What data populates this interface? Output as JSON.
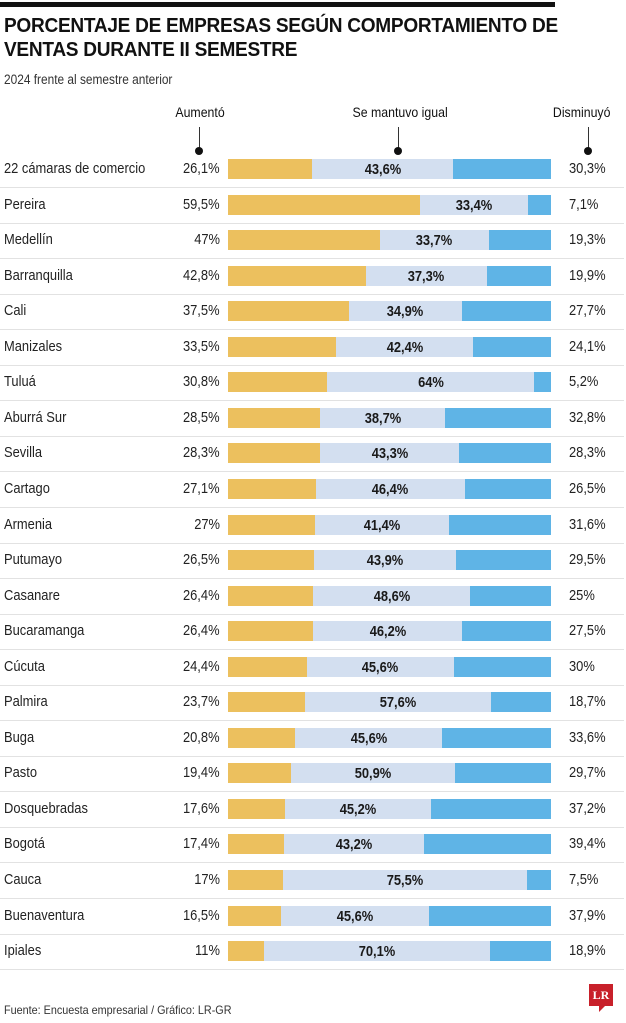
{
  "chart_data": {
    "type": "bar",
    "orientation": "horizontal",
    "stacked": true,
    "normalized_percent": true,
    "title": "PORCENTAJE DE EMPRESAS SEGÚN COMPORTAMIENTO DE VENTAS DURANTE II SEMESTRE",
    "subtitle": "2024 frente al semestre anterior",
    "xlabel": "",
    "ylabel": "",
    "xlim": [
      0,
      100
    ],
    "grid": false,
    "legend_placement": "top",
    "source": "Fuente: Encuesta empresarial / Gráfico: LR-GR",
    "series": [
      {
        "key": "aumento",
        "name": "Aumentó",
        "color": "#ecc05e",
        "values": [
          26.1,
          59.5,
          47,
          42.8,
          37.5,
          33.5,
          30.8,
          28.5,
          28.3,
          27.1,
          27,
          26.5,
          26.4,
          26.4,
          24.4,
          23.7,
          20.8,
          19.4,
          17.6,
          17.4,
          17,
          16.5,
          11
        ],
        "labels": [
          "26,1%",
          "59,5%",
          "47%",
          "42,8%",
          "37,5%",
          "33,5%",
          "30,8%",
          "28,5%",
          "28,3%",
          "27,1%",
          "27%",
          "26,5%",
          "26,4%",
          "26,4%",
          "24,4%",
          "23,7%",
          "20,8%",
          "19,4%",
          "17,6%",
          "17,4%",
          "17%",
          "16,5%",
          "11%"
        ]
      },
      {
        "key": "igual",
        "name": "Se mantuvo igual",
        "color": "#d3dff0",
        "values": [
          43.6,
          33.4,
          33.7,
          37.3,
          34.9,
          42.4,
          64,
          38.7,
          43.3,
          46.4,
          41.4,
          43.9,
          48.6,
          46.2,
          45.6,
          57.6,
          45.6,
          50.9,
          45.2,
          43.2,
          75.5,
          45.6,
          70.1
        ],
        "labels": [
          "43,6%",
          "33,4%",
          "33,7%",
          "37,3%",
          "34,9%",
          "42,4%",
          "64%",
          "38,7%",
          "43,3%",
          "46,4%",
          "41,4%",
          "43,9%",
          "48,6%",
          "46,2%",
          "45,6%",
          "57,6%",
          "45,6%",
          "50,9%",
          "45,2%",
          "43,2%",
          "75,5%",
          "45,6%",
          "70,1%"
        ]
      },
      {
        "key": "disminuyo",
        "name": "Disminuyó",
        "color": "#5fb4e6",
        "values": [
          30.3,
          7.1,
          19.3,
          19.9,
          27.7,
          24.1,
          5.2,
          32.8,
          28.3,
          26.5,
          31.6,
          29.5,
          25,
          27.5,
          30,
          18.7,
          33.6,
          29.7,
          37.2,
          39.4,
          7.5,
          37.9,
          18.9
        ],
        "labels": [
          "30,3%",
          "7,1%",
          "19,3%",
          "19,9%",
          "27,7%",
          "24,1%",
          "5,2%",
          "32,8%",
          "28,3%",
          "26,5%",
          "31,6%",
          "29,5%",
          "25%",
          "27,5%",
          "30%",
          "18,7%",
          "33,6%",
          "29,7%",
          "37,2%",
          "39,4%",
          "7,5%",
          "37,9%",
          "18,9%"
        ]
      }
    ],
    "categories": [
      "22 cámaras de comercio",
      "Pereira",
      "Medellín",
      "Barranquilla",
      "Cali",
      "Manizales",
      "Tuluá",
      "Aburrá Sur",
      "Sevilla",
      "Cartago",
      "Armenia",
      "Putumayo",
      "Casanare",
      "Bucaramanga",
      "Cúcuta",
      "Palmira",
      "Buga",
      "Pasto",
      "Dosquebradas",
      "Bogotá",
      "Cauca",
      "Buenaventura",
      "Ipiales"
    ]
  },
  "logo": {
    "text": "LR",
    "color": "#c8202a"
  }
}
